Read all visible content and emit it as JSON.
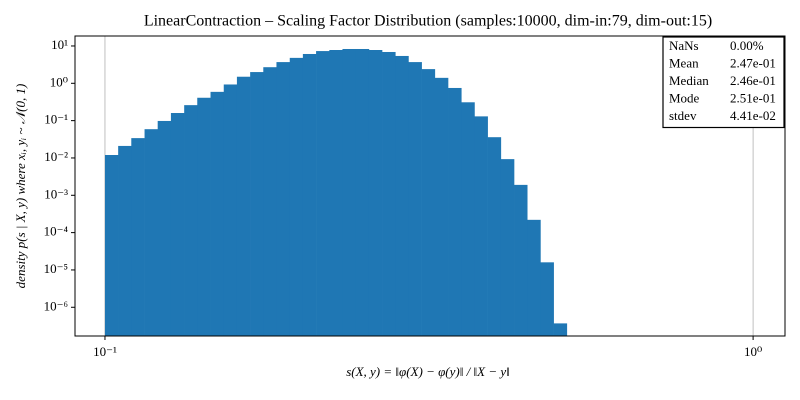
{
  "chart_data": {
    "type": "histogram",
    "title": "LinearContraction – Scaling Factor Distribution (samples:10000, dim-in:79, dim-out:15)",
    "xlabel": "s(X, y) = ‖φ(X) − φ(y)‖ / ‖X − y‖",
    "ylabel": "density p(s | X, y) where xᵢ, yᵢ ~ 𝒩(0, 1)",
    "xlog": true,
    "ylog": true,
    "grid": "x",
    "color": "#1f77b4",
    "bins": [
      0.1,
      0.1048,
      0.1098,
      0.1151,
      0.1206,
      0.1264,
      0.1325,
      0.1388,
      0.1455,
      0.1525,
      0.1598,
      0.1675,
      0.1755,
      0.1839,
      0.1928,
      0.202,
      0.2117,
      0.2219,
      0.2325,
      0.2437,
      0.2554,
      0.2676,
      0.2805,
      0.2939,
      0.308,
      0.3228,
      0.3383,
      0.3546,
      0.3716,
      0.3894,
      0.4081,
      0.4277,
      0.4482,
      0.4697,
      0.4923,
      0.5159
    ],
    "values": [
      0.012,
      0.021,
      0.034,
      0.059,
      0.098,
      0.16,
      0.26,
      0.41,
      0.59,
      0.93,
      1.5,
      2.0,
      2.7,
      3.7,
      4.8,
      6.1,
      7.3,
      7.8,
      8.3,
      8.3,
      7.8,
      6.9,
      5.4,
      3.7,
      2.4,
      1.4,
      0.75,
      0.31,
      0.13,
      0.036,
      0.0093,
      0.0019,
      0.00022,
      1.6e-05,
      3.7e-07
    ],
    "xlim": [
      0.0899,
      1.12
    ],
    "ylim": [
      1.7e-07,
      18.5
    ],
    "xticks": [
      {
        "value": 0.1,
        "label": "10⁻¹"
      },
      {
        "value": 1,
        "label": "10⁰"
      }
    ],
    "yticks": [
      {
        "value": 10,
        "label": "10¹"
      },
      {
        "value": 1,
        "label": "10⁰"
      },
      {
        "value": 0.1,
        "label": "10⁻¹"
      },
      {
        "value": 0.01,
        "label": "10⁻²"
      },
      {
        "value": 0.001,
        "label": "10⁻³"
      },
      {
        "value": 0.0001,
        "label": "10⁻⁴"
      },
      {
        "value": 1e-05,
        "label": "10⁻⁵"
      },
      {
        "value": 1e-06,
        "label": "10⁻⁶"
      }
    ],
    "stats": [
      [
        "NaNs",
        "0.00%"
      ],
      [
        "Mean",
        "2.47e-01"
      ],
      [
        "Median",
        "2.46e-01"
      ],
      [
        "Mode",
        "2.51e-01"
      ],
      [
        "stdev",
        "4.41e-02"
      ]
    ]
  }
}
